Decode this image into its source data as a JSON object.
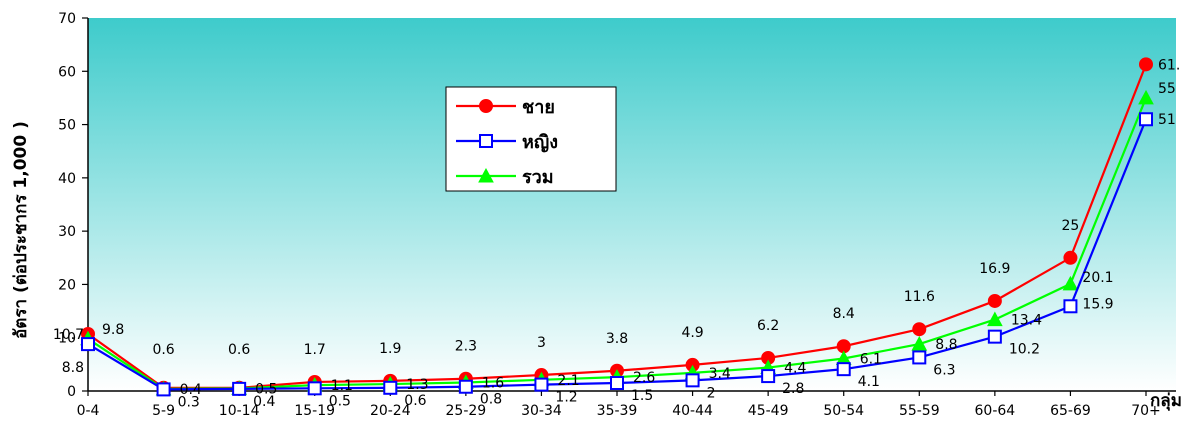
{
  "chart_data": {
    "type": "line",
    "title": "",
    "xlabel": "กลุ่ม",
    "ylabel": "อัตรา (ต่อประชากร 1,000 )",
    "ylim": [
      0,
      70
    ],
    "yticks": [
      0,
      10,
      20,
      30,
      40,
      50,
      60,
      70
    ],
    "grid": false,
    "legend_position": "center-left",
    "categories": [
      "0-4",
      "5-9",
      "10-14",
      "15-19",
      "20-24",
      "25-29",
      "30-34",
      "35-39",
      "40-44",
      "45-49",
      "50-54",
      "55-59",
      "60-64",
      "65-69",
      "70+"
    ],
    "series": [
      {
        "name": "ชาย",
        "color": "#ff0000",
        "marker": "circle-filled",
        "values": [
          10.7,
          0.6,
          0.6,
          1.7,
          1.9,
          2.3,
          3,
          3.8,
          4.9,
          6.2,
          8.4,
          11.6,
          16.9,
          25,
          61.3
        ],
        "labels": [
          "10.7",
          "0.6",
          "0.6",
          "1.7",
          "1.9",
          "2.3",
          "3",
          "3.8",
          "4.9",
          "6.2",
          "8.4",
          "11.6",
          "16.9",
          "25",
          "61."
        ]
      },
      {
        "name": "หญิง",
        "color": "#0000ff",
        "marker": "square-open",
        "values": [
          8.8,
          0.3,
          0.4,
          0.5,
          0.6,
          0.8,
          1.2,
          1.5,
          2,
          2.8,
          4.1,
          6.3,
          10.2,
          15.9,
          51
        ],
        "labels": [
          "8.8",
          "0.3",
          "0.4",
          "0.5",
          "0.6",
          "0.8",
          "1.2",
          "1.5",
          "2",
          "2.8",
          "4.1",
          "6.3",
          "10.2",
          "15.9",
          "51"
        ]
      },
      {
        "name": "รวม",
        "color": "#00ff00",
        "marker": "triangle-filled",
        "values": [
          9.8,
          0.4,
          0.5,
          1.1,
          1.3,
          1.6,
          2.1,
          2.6,
          3.4,
          4.4,
          6.1,
          8.8,
          13.4,
          20.1,
          55
        ],
        "labels": [
          "9.8",
          "0.4",
          "0.5",
          "1.1",
          "1.3",
          "1.6",
          "2.1",
          "2.6",
          "3.4",
          "4.4",
          "6.1",
          "8.8",
          "13.4",
          "20.1",
          "55"
        ]
      }
    ],
    "background_gradient": [
      "#3ecbcb",
      "#ffffff"
    ]
  }
}
